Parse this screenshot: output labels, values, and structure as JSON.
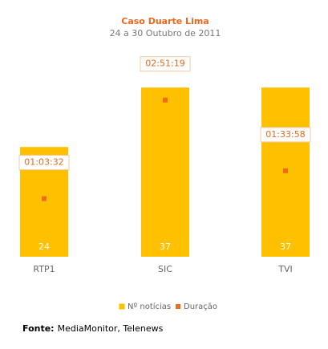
{
  "chart_data": {
    "type": "bar",
    "title": "Caso Duarte Lima",
    "subtitle": "24 a 30 Outubro de 2011",
    "categories": [
      "RTP1",
      "SIC",
      "TVI"
    ],
    "series": [
      {
        "name": "Nº notícias",
        "color": "#ffc000",
        "values": [
          24,
          37,
          37
        ]
      },
      {
        "name": "Duração",
        "color": "#f26b1d",
        "axis": "y2",
        "values": [
          3812,
          10279,
          5638
        ],
        "value_labels": [
          "01:03:32",
          "02:51:19",
          "01:33:58"
        ]
      }
    ],
    "ylim": [
      0,
      40
    ],
    "y2lim": [
      0,
      12000
    ],
    "source_label": "Fonte:",
    "source": "MediaMonitor, Telenews"
  }
}
